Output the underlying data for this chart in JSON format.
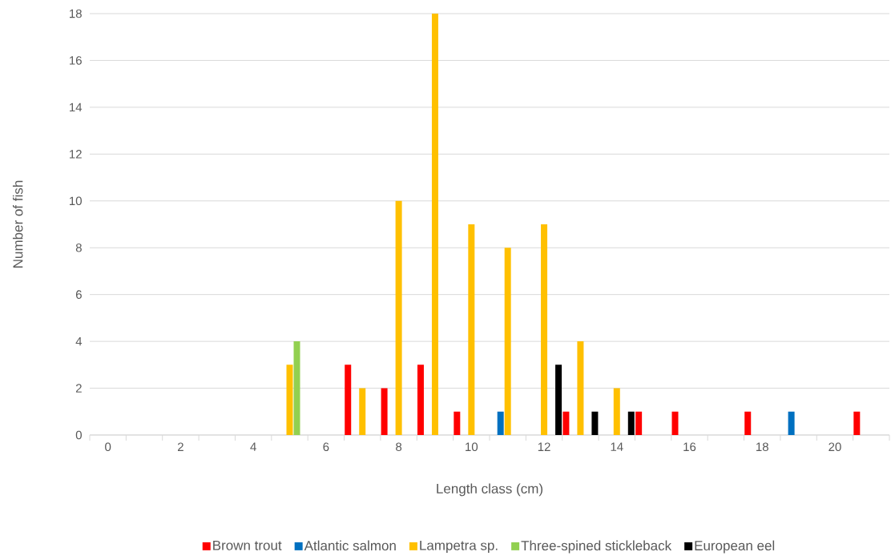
{
  "chart_data": {
    "type": "bar",
    "xlabel": "Length class (cm)",
    "ylabel": "Number of fish",
    "categories": [
      "0",
      null,
      "2",
      null,
      "4",
      null,
      "6",
      null,
      "8",
      null,
      "10",
      null,
      "12",
      null,
      "14",
      null,
      "16",
      null,
      "18",
      null,
      "20",
      null
    ],
    "series": [
      {
        "name": "Brown trout",
        "color": "#ff0000",
        "values": [
          0,
          0,
          0,
          0,
          0,
          0,
          0,
          3,
          2,
          3,
          1,
          0,
          0,
          1,
          0,
          1,
          1,
          0,
          1,
          0,
          0,
          1
        ]
      },
      {
        "name": "Atlantic salmon",
        "color": "#0070c0",
        "values": [
          0,
          0,
          0,
          0,
          0,
          0,
          0,
          0,
          0,
          0,
          0,
          1,
          0,
          0,
          0,
          0,
          0,
          0,
          0,
          1,
          0,
          0
        ]
      },
      {
        "name": "Lampetra sp.",
        "color": "#ffc000",
        "values": [
          0,
          0,
          0,
          0,
          0,
          3,
          0,
          2,
          10,
          18,
          9,
          8,
          9,
          4,
          2,
          0,
          0,
          0,
          0,
          0,
          0,
          0
        ]
      },
      {
        "name": "Three-spined stickleback",
        "color": "#92d050",
        "values": [
          0,
          0,
          0,
          0,
          0,
          4,
          0,
          0,
          0,
          0,
          0,
          0,
          0,
          0,
          0,
          0,
          0,
          0,
          0,
          0,
          0,
          0
        ]
      },
      {
        "name": "European eel",
        "color": "#000000",
        "values": [
          0,
          0,
          0,
          0,
          0,
          0,
          0,
          0,
          0,
          0,
          0,
          0,
          3,
          1,
          1,
          0,
          0,
          0,
          0,
          0,
          0,
          0
        ]
      }
    ],
    "ylim": [
      0,
      18
    ],
    "yticks": [
      0,
      2,
      4,
      6,
      8,
      10,
      12,
      14,
      16,
      18
    ],
    "grid": "y",
    "legend": "bottom"
  }
}
